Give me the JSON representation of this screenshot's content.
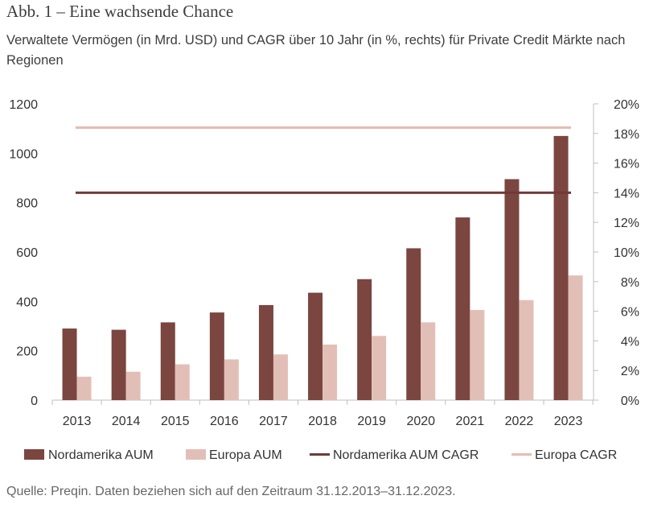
{
  "title": "Abb. 1 – Eine wachsende Chance",
  "subtitle": "Verwaltete Vermögen (in Mrd. USD) und CAGR über 10 Jahr (in %, rechts) für Private Credit Märkte nach Regionen",
  "source": "Quelle: Preqin. Daten beziehen sich auf den Zeitraum 31.12.2013–31.12.2023.",
  "chart_data": {
    "type": "bar",
    "categories": [
      "2013",
      "2014",
      "2015",
      "2016",
      "2017",
      "2018",
      "2019",
      "2020",
      "2021",
      "2022",
      "2023"
    ],
    "series": [
      {
        "name": "Nordamerika AUM",
        "type": "bar",
        "axis": "left",
        "color": "#7b4540",
        "values": [
          290,
          285,
          315,
          355,
          385,
          435,
          490,
          615,
          740,
          895,
          1070
        ]
      },
      {
        "name": "Europa AUM",
        "type": "bar",
        "axis": "left",
        "color": "#e2bfb6",
        "values": [
          95,
          115,
          145,
          165,
          185,
          225,
          260,
          315,
          365,
          405,
          505
        ]
      },
      {
        "name": "Nordamerika AUM CAGR",
        "type": "line",
        "axis": "right",
        "color": "#6e3b38",
        "values": [
          14,
          14,
          14,
          14,
          14,
          14,
          14,
          14,
          14,
          14,
          14
        ]
      },
      {
        "name": "Europa CAGR",
        "type": "line",
        "axis": "right",
        "color": "#e5bcb2",
        "values": [
          18.4,
          18.4,
          18.4,
          18.4,
          18.4,
          18.4,
          18.4,
          18.4,
          18.4,
          18.4,
          18.4
        ]
      }
    ],
    "y_left": {
      "ylim": [
        0,
        1200
      ],
      "ticks": [
        "0",
        "200",
        "400",
        "600",
        "800",
        "1000",
        "1200"
      ]
    },
    "y_right": {
      "ylim": [
        0,
        20
      ],
      "ticks": [
        "0%",
        "2%",
        "4%",
        "6%",
        "8%",
        "10%",
        "12%",
        "14%",
        "16%",
        "18%",
        "20%"
      ]
    },
    "grid": false,
    "legend_position": "bottom"
  }
}
